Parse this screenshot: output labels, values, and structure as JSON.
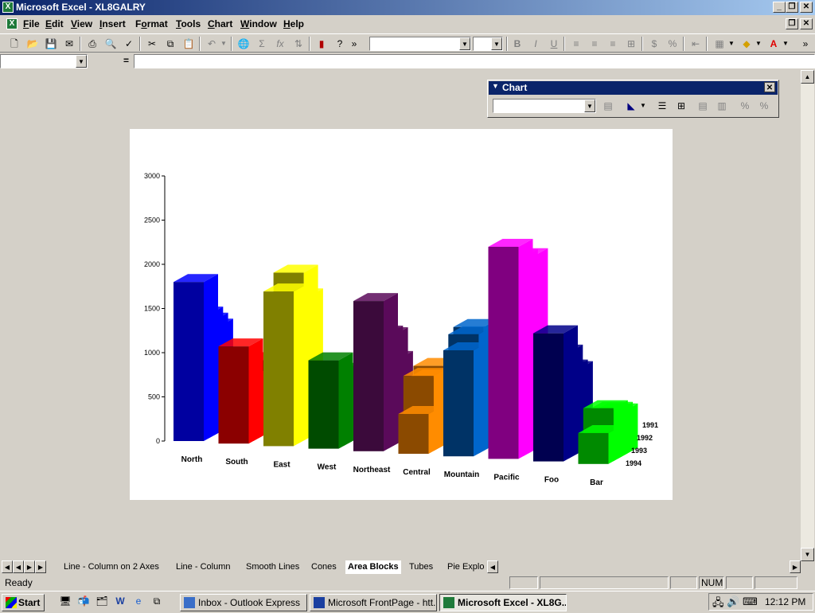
{
  "window": {
    "title": "Microsoft Excel - XL8GALRY",
    "app_icon": "X"
  },
  "menu": [
    {
      "label": "File",
      "ul": "F",
      "rest": "ile"
    },
    {
      "label": "Edit",
      "ul": "E",
      "rest": "dit"
    },
    {
      "label": "View",
      "ul": "V",
      "rest": "iew"
    },
    {
      "label": "Insert",
      "ul": "I",
      "rest": "nsert"
    },
    {
      "label": "Format",
      "ul": "o",
      "pre": "F",
      "rest": "rmat"
    },
    {
      "label": "Tools",
      "ul": "T",
      "rest": "ools"
    },
    {
      "label": "Chart",
      "ul": "C",
      "rest": "hart"
    },
    {
      "label": "Window",
      "ul": "W",
      "rest": "indow"
    },
    {
      "label": "Help",
      "ul": "H",
      "rest": "elp"
    }
  ],
  "toolbar": {
    "buttons": [
      "new-icon",
      "open-icon",
      "save-icon",
      "print-icon",
      "print-preview-icon",
      "spelling-icon",
      "cut-icon",
      "copy-icon",
      "paste-icon",
      "undo-icon",
      "hyperlink-icon",
      "autosum-icon",
      "function-icon",
      "sort-icon",
      "chart-wizard-icon",
      "help-icon"
    ],
    "bold": "B",
    "italic": "I",
    "underline": "U",
    "currency": "$",
    "percent": "%"
  },
  "formula_bar": {
    "name_box": "",
    "equals": "="
  },
  "chart_toolbar": {
    "title": "Chart",
    "close": "✕",
    "object_combo": ""
  },
  "chart_data": {
    "type": "3d-area-blocks",
    "categories": [
      "North",
      "South",
      "East",
      "West",
      "Northeast",
      "Central",
      "Mountain",
      "Pacific",
      "Foo",
      "Bar"
    ],
    "series": [
      {
        "name": "1991",
        "color": "#00ff00",
        "values": [
          1200,
          850,
          1600,
          400,
          950,
          900,
          1100,
          2200,
          950,
          500
        ]
      },
      {
        "name": "1992",
        "color": "#ff00ff",
        "values": [
          1300,
          600,
          1900,
          700,
          1250,
          800,
          1400,
          1800,
          1000,
          550
        ]
      },
      {
        "name": "1993",
        "color": "#ffff00",
        "values": [
          1400,
          700,
          1500,
          850,
          1300,
          850,
          1350,
          2250,
          1200,
          600
        ]
      },
      {
        "name": "1994",
        "color": "#0000a0",
        "values": [
          1800,
          1100,
          1750,
          1000,
          1700,
          450,
          1200,
          2400,
          1450,
          350
        ]
      }
    ],
    "block_colors": [
      "#0000a0",
      "#8b0000",
      "#808000",
      "#004b00",
      "#3b0a3b",
      "#8b4a00",
      "#003366",
      "#800080",
      "#000050",
      "#008a00"
    ],
    "side_colors": [
      "#0000ff",
      "#ff0000",
      "#ffff00",
      "#008000",
      "#5a0a5a",
      "#ff8c00",
      "#0066cc",
      "#ff00ff",
      "#000088",
      "#00ff00"
    ],
    "ylim": [
      0,
      3000
    ],
    "yticks": [
      "0",
      "500",
      "1000",
      "1500",
      "2000",
      "2500",
      "3000"
    ],
    "legend": "none"
  },
  "sheet_tabs": [
    "Line - Column on 2 Axes",
    "Line - Column",
    "Smooth Lines",
    "Cones",
    "Area Blocks",
    "Tubes",
    "Pie Explo"
  ],
  "active_tab": "Area Blocks",
  "status": {
    "text": "Ready",
    "num": "NUM"
  },
  "taskbar": {
    "start": "Start",
    "tasks": [
      {
        "label": "Inbox - Outlook Express",
        "icon": "outlook-icon",
        "active": false
      },
      {
        "label": "Microsoft FrontPage - htt...",
        "icon": "frontpage-icon",
        "active": false
      },
      {
        "label": "Microsoft Excel - XL8G...",
        "icon": "excel-icon",
        "active": true
      }
    ],
    "clock": "12:12 PM"
  }
}
